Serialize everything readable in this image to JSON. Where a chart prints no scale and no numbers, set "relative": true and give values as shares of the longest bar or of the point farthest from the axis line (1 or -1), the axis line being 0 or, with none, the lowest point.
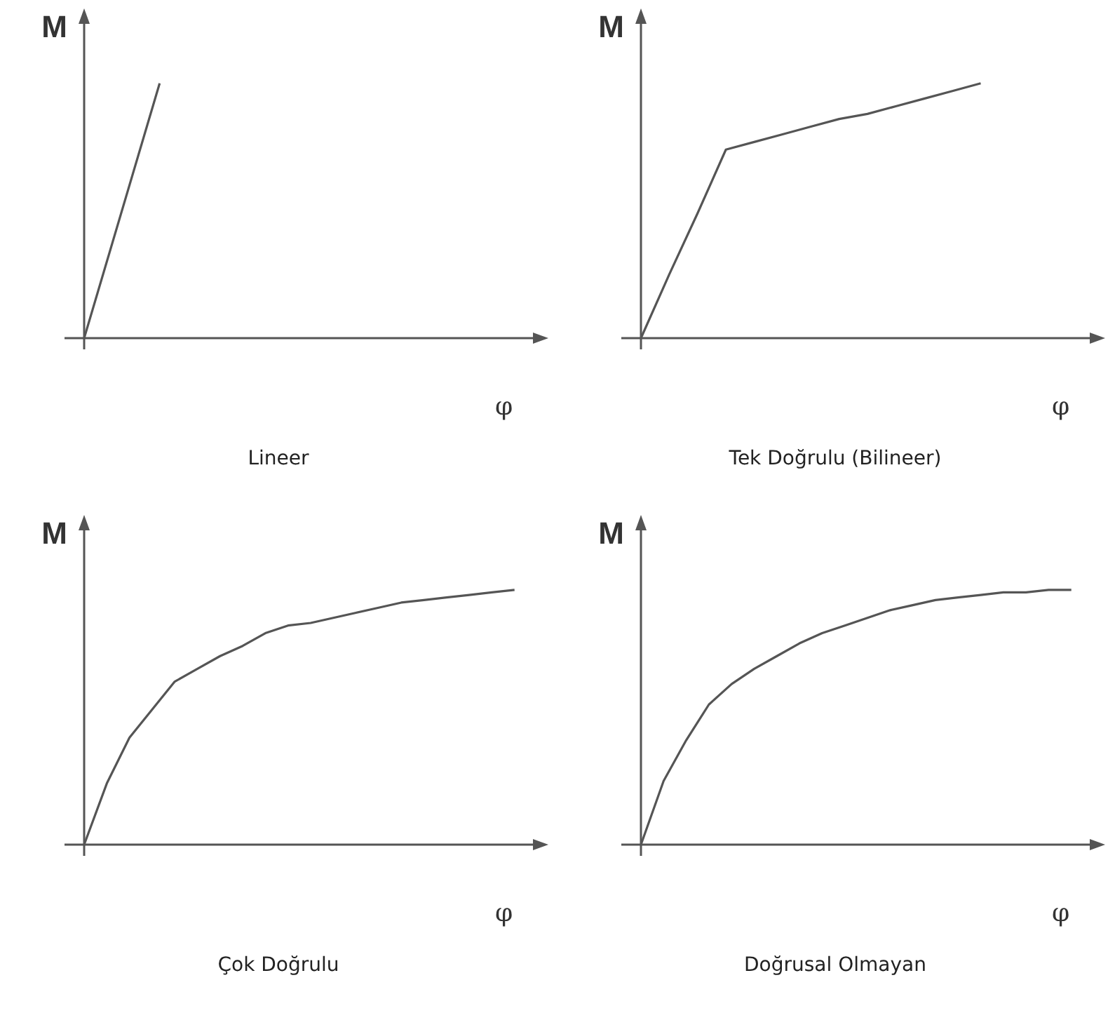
{
  "chart_data": [
    {
      "type": "line",
      "title": "Lineer",
      "xlabel": "φ",
      "ylabel": "M",
      "relative": true,
      "marker": "none",
      "categories": [
        null,
        null,
        null,
        null,
        null,
        null,
        null
      ],
      "series": [
        {
          "color": "#555555",
          "values": [
            0,
            1,
            null,
            null,
            null,
            null,
            null
          ]
        }
      ]
    },
    {
      "type": "line",
      "title": "Tek Doğrulu (Bilineer)",
      "xlabel": "φ",
      "ylabel": "M",
      "relative": true,
      "marker": "none",
      "categories": [
        null,
        null,
        null,
        null,
        null,
        null,
        null,
        null,
        null,
        null,
        null,
        null,
        null,
        null,
        null,
        null,
        null
      ],
      "series": [
        {
          "color": "#555555",
          "values": [
            0,
            0.25,
            0.49,
            0.74,
            0.77,
            0.8,
            0.83,
            0.86,
            0.88,
            0.91,
            0.94,
            0.97,
            1,
            null,
            null,
            null,
            null
          ]
        }
      ]
    },
    {
      "type": "line",
      "title": "Çok Doğrulu",
      "xlabel": "φ",
      "ylabel": "M",
      "relative": true,
      "marker": "none",
      "categories": [
        null,
        null,
        null,
        null,
        null,
        null,
        null,
        null,
        null,
        null,
        null,
        null,
        null,
        null,
        null,
        null,
        null,
        null,
        null,
        null,
        null
      ],
      "series": [
        {
          "color": "#555555",
          "values": [
            0,
            0.24,
            0.42,
            0.53,
            0.64,
            0.69,
            0.74,
            0.78,
            0.83,
            0.86,
            0.87,
            0.89,
            0.91,
            0.93,
            0.95,
            0.96,
            0.97,
            0.98,
            0.99,
            1,
            null
          ]
        }
      ]
    },
    {
      "type": "line",
      "title": "Doğrusal Olmayan",
      "xlabel": "φ",
      "ylabel": "M",
      "relative": true,
      "marker": "none",
      "categories": [
        null,
        null,
        null,
        null,
        null,
        null,
        null,
        null,
        null,
        null,
        null,
        null,
        null,
        null,
        null,
        null,
        null,
        null,
        null,
        null,
        null
      ],
      "series": [
        {
          "color": "#555555",
          "values": [
            0,
            0.25,
            0.41,
            0.55,
            0.63,
            0.69,
            0.74,
            0.79,
            0.83,
            0.86,
            0.89,
            0.92,
            0.94,
            0.96,
            0.97,
            0.98,
            0.99,
            0.99,
            1,
            1,
            null
          ]
        }
      ]
    }
  ]
}
